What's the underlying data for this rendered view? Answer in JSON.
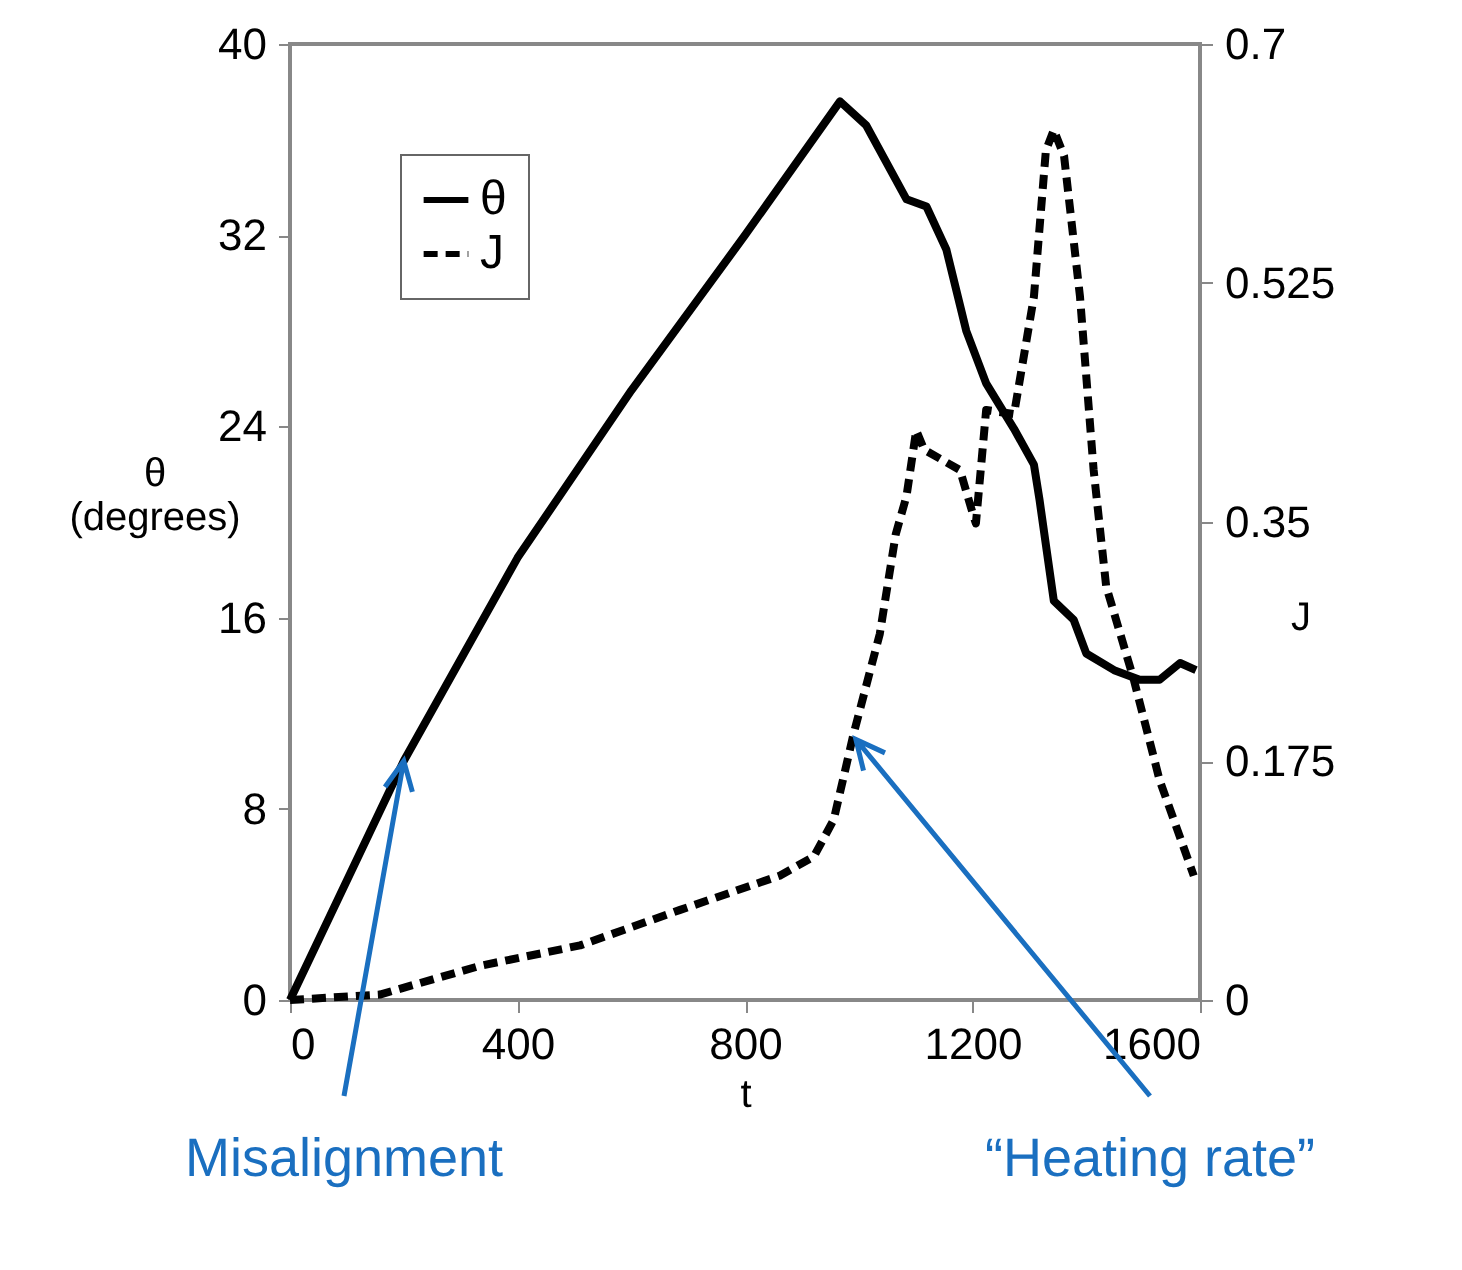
{
  "chart_data": {
    "type": "line",
    "xlabel": "t",
    "ylabel": "θ (degrees)",
    "y2label": "J",
    "xlim": [
      0,
      1600
    ],
    "xticks": [
      0,
      400,
      800,
      1200,
      1600
    ],
    "ylim": [
      0,
      40
    ],
    "yticks": [
      0,
      8,
      16,
      24,
      32,
      40
    ],
    "y2lim": [
      0,
      0.7
    ],
    "y2ticks": [
      0,
      0.175,
      0.35,
      0.525,
      0.7
    ],
    "grid": false,
    "legend": "top left",
    "series": [
      {
        "name": "θ",
        "color": "#000000",
        "line_style": "solid",
        "x": [
          0,
          200,
          400,
          600,
          800,
          967,
          1013,
          1084,
          1119,
          1154,
          1189,
          1224,
          1273,
          1308,
          1318,
          1343,
          1378,
          1400,
          1449,
          1494,
          1529,
          1565,
          1593
        ],
        "values": [
          0,
          10,
          18.5,
          25.5,
          32,
          37.6,
          36.6,
          33.5,
          33.2,
          31.4,
          28,
          25.8,
          23.9,
          22.4,
          20.9,
          16.7,
          15.9,
          14.5,
          13.8,
          13.4,
          13.4,
          14.1,
          13.8
        ]
      },
      {
        "name": "J",
        "color": "#000000",
        "line_style": "dashed",
        "axis": "y2",
        "x": [
          0,
          158,
          334,
          510,
          686,
          861,
          921,
          956,
          991,
          1037,
          1065,
          1084,
          1101,
          1115,
          1178,
          1202,
          1206,
          1224,
          1273,
          1308,
          1329,
          1343,
          1361,
          1389,
          1413,
          1435,
          1484,
          1529,
          1589
        ],
        "values": [
          0,
          0.004,
          0.025,
          0.04,
          0.066,
          0.091,
          0.105,
          0.132,
          0.195,
          0.268,
          0.341,
          0.369,
          0.417,
          0.403,
          0.388,
          0.354,
          0.349,
          0.432,
          0.429,
          0.515,
          0.622,
          0.637,
          0.618,
          0.515,
          0.388,
          0.303,
          0.234,
          0.161,
          0.091
        ]
      }
    ],
    "annotations": [
      {
        "text": "Misalignment",
        "x": 200,
        "y": 10
      },
      {
        "text": "“Heating rate”",
        "x": 995,
        "y": 10.9
      }
    ]
  }
}
